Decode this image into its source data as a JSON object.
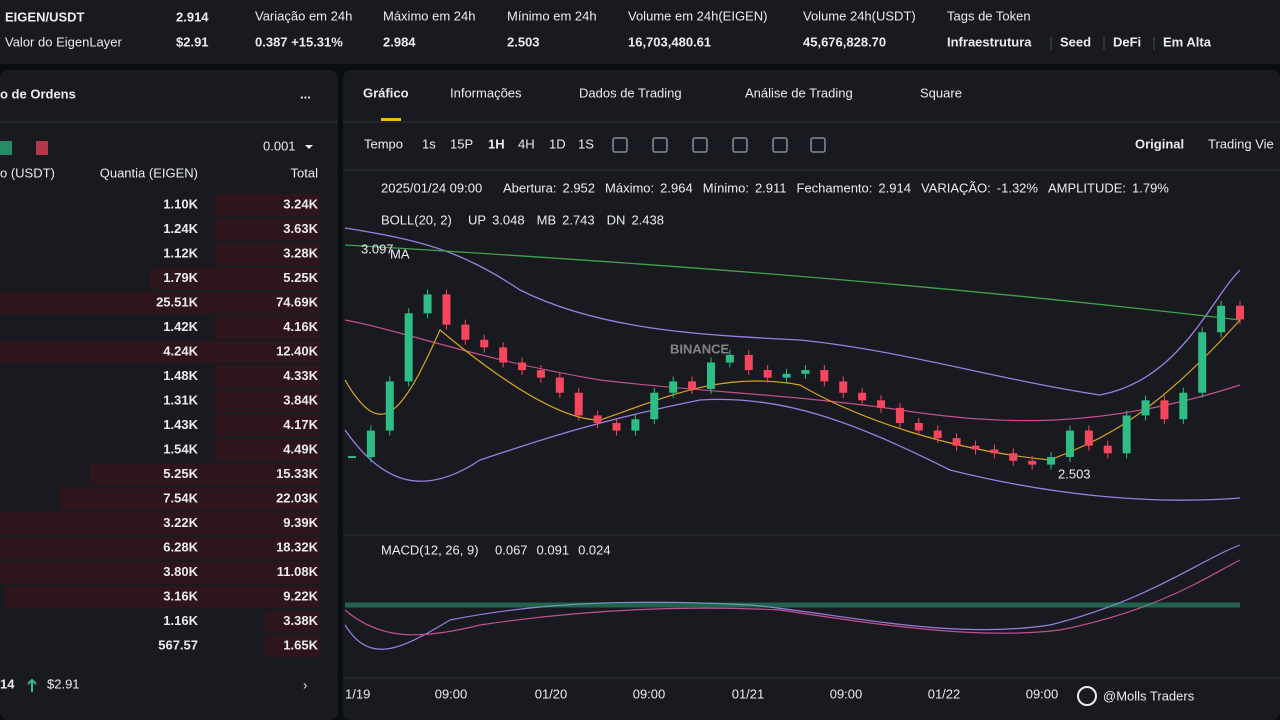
{
  "header": {
    "symbol": "EIGEN/USDT",
    "price": "2.914",
    "subtitle": "Valor do EigenLayer",
    "price_usd": "$2.91",
    "stats": [
      {
        "label": "Variação em 24h",
        "value": "0.387 +15.31%"
      },
      {
        "label": "Máximo em 24h",
        "value": "2.984"
      },
      {
        "label": "Mínimo em 24h",
        "value": "2.503"
      },
      {
        "label": "Volume em 24h(EIGEN)",
        "value": "16,703,480.61"
      },
      {
        "label": "Volume 24h(USDT)",
        "value": "45,676,828.70"
      }
    ],
    "tags_label": "Tags de Token",
    "tags": [
      "Infraestrutura",
      "Seed",
      "DeFi",
      "Em Alta"
    ]
  },
  "order_book": {
    "title": "o de Ordens",
    "menu": "...",
    "precision": "0.001",
    "columns": [
      "o (USDT)",
      "Quantia (EIGEN)",
      "Total"
    ],
    "rows": [
      [
        "1.10K",
        "3.24K"
      ],
      [
        "1.24K",
        "3.63K"
      ],
      [
        "1.12K",
        "3.28K"
      ],
      [
        "1.79K",
        "5.25K"
      ],
      [
        "25.51K",
        "74.69K"
      ],
      [
        "1.42K",
        "4.16K"
      ],
      [
        "4.24K",
        "12.40K"
      ],
      [
        "1.48K",
        "4.33K"
      ],
      [
        "1.31K",
        "3.84K"
      ],
      [
        "1.43K",
        "4.17K"
      ],
      [
        "1.54K",
        "4.49K"
      ],
      [
        "5.25K",
        "15.33K"
      ],
      [
        "7.54K",
        "22.03K"
      ],
      [
        "3.22K",
        "9.39K"
      ],
      [
        "6.28K",
        "18.32K"
      ],
      [
        "3.80K",
        "11.08K"
      ],
      [
        "3.16K",
        "9.22K"
      ],
      [
        "1.16K",
        "3.38K"
      ],
      [
        "567.57",
        "1.65K"
      ]
    ],
    "last_price": "14",
    "last_price_usd": "$2.91"
  },
  "tabs": [
    "Gráfico",
    "Informações",
    "Dados de Trading",
    "Análise de Trading",
    "Square"
  ],
  "toolbar": {
    "intervals": [
      "Tempo",
      "1s",
      "15P",
      "1H",
      "4H",
      "1D",
      "1S"
    ],
    "views": [
      "Original",
      "Trading Vie"
    ]
  },
  "ohlc": {
    "date": "2025/01/24 09:00",
    "items": [
      {
        "label": "Abertura:",
        "value": "2.952"
      },
      {
        "label": "Máximo:",
        "value": "2.964"
      },
      {
        "label": "Mínimo:",
        "value": "2.911"
      },
      {
        "label": "Fechamento:",
        "value": "2.914"
      },
      {
        "label": "VARIAÇÃO:",
        "value": "-1.32%"
      },
      {
        "label": "AMPLITUDE:",
        "value": "1.79%"
      }
    ]
  },
  "boll": {
    "label": "BOLL(20, 2)",
    "items": [
      {
        "label": "UP",
        "value": "3.048"
      },
      {
        "label": "MB",
        "value": "2.743"
      },
      {
        "label": "DN",
        "value": "2.438"
      }
    ]
  },
  "ma_label": "MA",
  "chart": {
    "ylim": [
      2.41,
      3.19
    ],
    "high_marker": 3.097,
    "low_marker": 2.503,
    "closes": [
      2.55,
      2.62,
      2.75,
      2.93,
      2.98,
      2.9,
      2.86,
      2.84,
      2.8,
      2.78,
      2.76,
      2.72,
      2.66,
      2.64,
      2.62,
      2.65,
      2.72,
      2.75,
      2.73,
      2.8,
      2.82,
      2.78,
      2.76,
      2.77,
      2.78,
      2.75,
      2.72,
      2.7,
      2.68,
      2.64,
      2.62,
      2.6,
      2.58,
      2.57,
      2.56,
      2.54,
      2.53,
      2.55,
      2.62,
      2.58,
      2.56,
      2.66,
      2.7,
      2.65,
      2.72,
      2.88,
      2.95,
      2.914
    ],
    "x_labels": [
      "1/19",
      "09:00",
      "01/20",
      "09:00",
      "01/21",
      "09:00",
      "01/22",
      "09:00"
    ]
  },
  "macd": {
    "label": "MACD(12, 26, 9)",
    "values": [
      "0.067",
      "0.091",
      "0.024"
    ]
  },
  "watermark": "@Molls Traders"
}
